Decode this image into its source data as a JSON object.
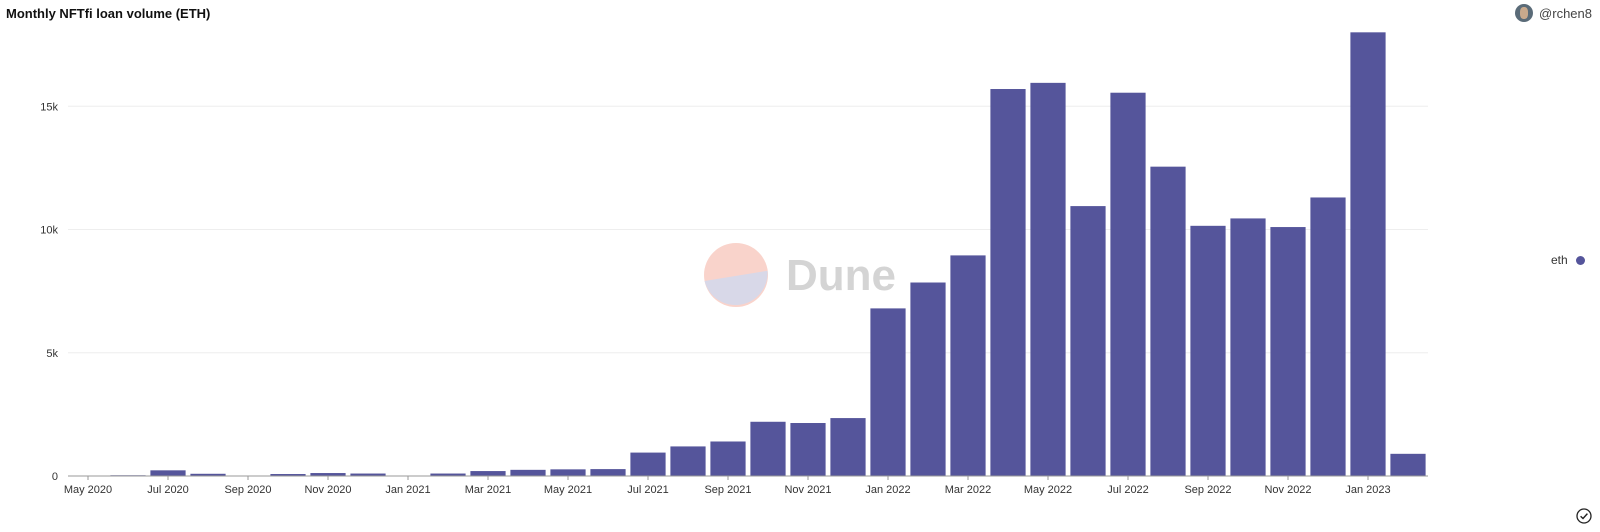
{
  "header": {
    "title": "Monthly NFTfi loan volume (ETH)",
    "author": "@rchen8"
  },
  "watermark": {
    "text": "Dune"
  },
  "colors": {
    "bar": "#55559b",
    "grid": "#eeeeee",
    "axis": "#999999"
  },
  "chart_data": {
    "type": "bar",
    "title": "Monthly NFTfi loan volume (ETH)",
    "xlabel": "",
    "ylabel": "",
    "ylim": [
      0,
      18500
    ],
    "yticks": [
      0,
      5000,
      10000,
      15000
    ],
    "ytick_labels": [
      "0",
      "5k",
      "10k",
      "15k"
    ],
    "categories": [
      "May 2020",
      "Jun 2020",
      "Jul 2020",
      "Aug 2020",
      "Sep 2020",
      "Oct 2020",
      "Nov 2020",
      "Dec 2020",
      "Jan 2021",
      "Feb 2021",
      "Mar 2021",
      "Apr 2021",
      "May 2021",
      "Jun 2021",
      "Jul 2021",
      "Aug 2021",
      "Sep 2021",
      "Oct 2021",
      "Nov 2021",
      "Dec 2021",
      "Jan 2022",
      "Feb 2022",
      "Mar 2022",
      "Apr 2022",
      "May 2022",
      "Jun 2022",
      "Jul 2022",
      "Aug 2022",
      "Sep 2022",
      "Oct 2022",
      "Nov 2022",
      "Dec 2022",
      "Jan 2023",
      "Feb 2023"
    ],
    "xtick_labels": [
      "May 2020",
      "",
      "Jul 2020",
      "",
      "Sep 2020",
      "",
      "Nov 2020",
      "",
      "Jan 2021",
      "",
      "Mar 2021",
      "",
      "May 2021",
      "",
      "Jul 2021",
      "",
      "Sep 2021",
      "",
      "Nov 2021",
      "",
      "Jan 2022",
      "",
      "Mar 2022",
      "",
      "May 2022",
      "",
      "Jul 2022",
      "",
      "Sep 2022",
      "",
      "Nov 2022",
      "",
      "Jan 2023",
      ""
    ],
    "series": [
      {
        "name": "eth",
        "values": [
          15,
          30,
          230,
          90,
          20,
          80,
          120,
          100,
          20,
          100,
          200,
          250,
          270,
          280,
          950,
          1200,
          1400,
          2200,
          2150,
          2350,
          6800,
          7850,
          8950,
          15700,
          15950,
          10950,
          15550,
          12550,
          10150,
          10450,
          10100,
          11300,
          18000,
          900
        ]
      }
    ],
    "grid": true,
    "legend_position": "right"
  }
}
